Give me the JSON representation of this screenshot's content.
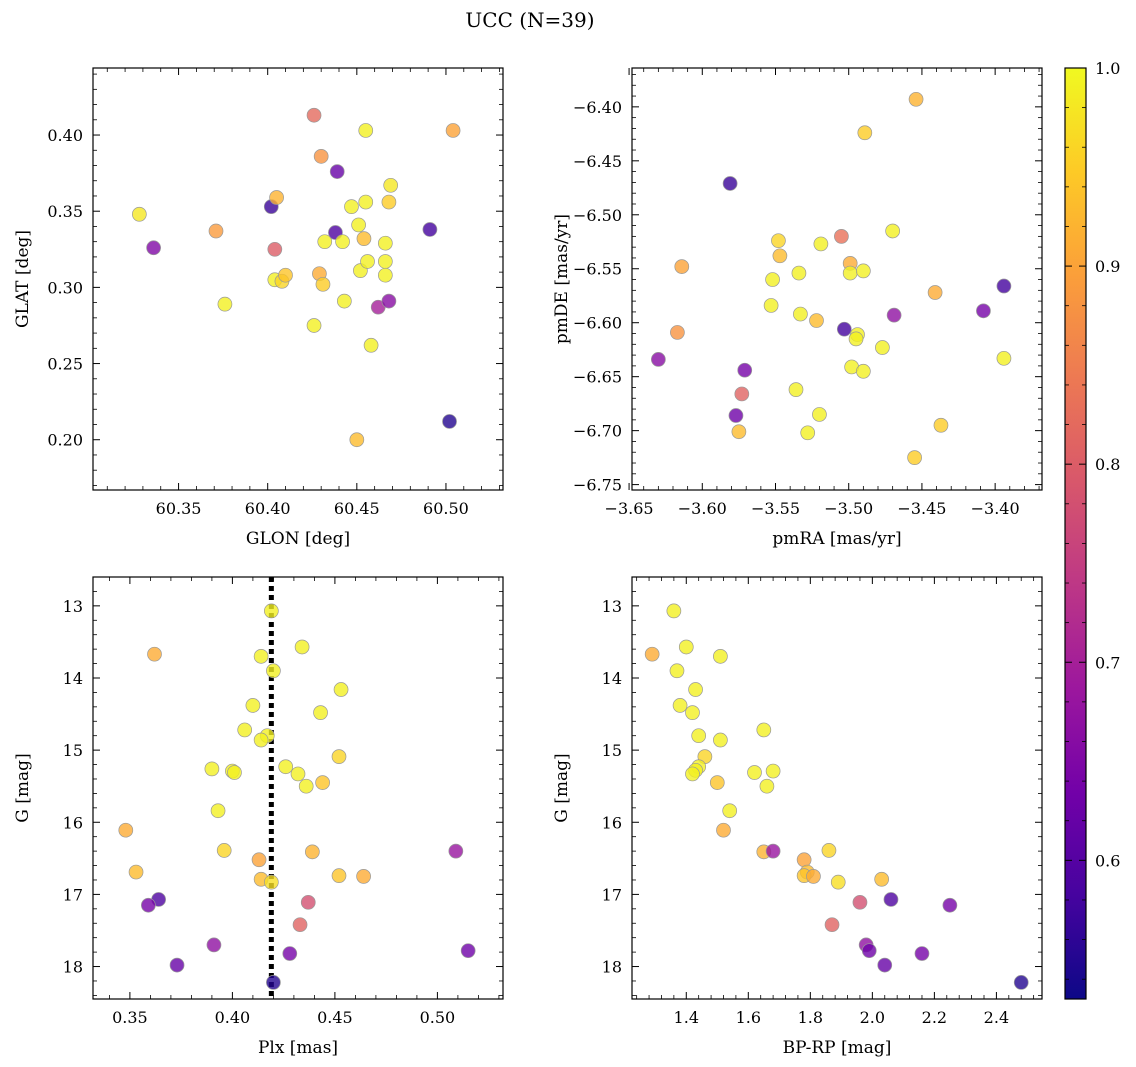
{
  "title": "UCC (N=39)",
  "chart_data": [
    {
      "type": "scatter",
      "xlabel": "GLON [deg]",
      "ylabel": "GLAT [deg]",
      "xlim": [
        60.302,
        60.532
      ],
      "ylim": [
        0.167,
        0.444
      ],
      "xticks": [
        60.35,
        60.4,
        60.45,
        60.5
      ],
      "xticklabels": [
        "60.35",
        "60.40",
        "60.45",
        "60.50"
      ],
      "yticks": [
        0.2,
        0.25,
        0.3,
        0.35,
        0.4
      ],
      "yticklabels": [
        "0.20",
        "0.25",
        "0.30",
        "0.35",
        "0.40"
      ],
      "grid": false,
      "points": [
        {
          "x": 60.328,
          "y": 0.348,
          "c": 0.98
        },
        {
          "x": 60.336,
          "y": 0.326,
          "c": 0.65
        },
        {
          "x": 60.371,
          "y": 0.337,
          "c": 0.89
        },
        {
          "x": 60.376,
          "y": 0.289,
          "c": 0.99
        },
        {
          "x": 60.402,
          "y": 0.353,
          "c": 0.57
        },
        {
          "x": 60.404,
          "y": 0.325,
          "c": 0.8
        },
        {
          "x": 60.404,
          "y": 0.305,
          "c": 0.99
        },
        {
          "x": 60.405,
          "y": 0.359,
          "c": 0.92
        },
        {
          "x": 60.408,
          "y": 0.304,
          "c": 0.96
        },
        {
          "x": 60.41,
          "y": 0.308,
          "c": 0.94
        },
        {
          "x": 60.426,
          "y": 0.413,
          "c": 0.82
        },
        {
          "x": 60.426,
          "y": 0.275,
          "c": 0.99
        },
        {
          "x": 60.429,
          "y": 0.309,
          "c": 0.91
        },
        {
          "x": 60.43,
          "y": 0.386,
          "c": 0.88
        },
        {
          "x": 60.431,
          "y": 0.302,
          "c": 0.95
        },
        {
          "x": 60.432,
          "y": 0.33,
          "c": 0.99
        },
        {
          "x": 60.438,
          "y": 0.336,
          "c": 0.59
        },
        {
          "x": 60.439,
          "y": 0.376,
          "c": 0.62
        },
        {
          "x": 60.442,
          "y": 0.33,
          "c": 0.99
        },
        {
          "x": 60.443,
          "y": 0.291,
          "c": 0.99
        },
        {
          "x": 60.447,
          "y": 0.353,
          "c": 0.99
        },
        {
          "x": 60.45,
          "y": 0.2,
          "c": 0.93
        },
        {
          "x": 60.451,
          "y": 0.341,
          "c": 0.99
        },
        {
          "x": 60.452,
          "y": 0.311,
          "c": 0.99
        },
        {
          "x": 60.454,
          "y": 0.332,
          "c": 0.93
        },
        {
          "x": 60.455,
          "y": 0.403,
          "c": 0.99
        },
        {
          "x": 60.455,
          "y": 0.356,
          "c": 0.99
        },
        {
          "x": 60.456,
          "y": 0.317,
          "c": 0.99
        },
        {
          "x": 60.458,
          "y": 0.262,
          "c": 0.99
        },
        {
          "x": 60.462,
          "y": 0.287,
          "c": 0.7
        },
        {
          "x": 60.466,
          "y": 0.329,
          "c": 0.99
        },
        {
          "x": 60.466,
          "y": 0.317,
          "c": 0.99
        },
        {
          "x": 60.466,
          "y": 0.308,
          "c": 0.99
        },
        {
          "x": 60.468,
          "y": 0.291,
          "c": 0.66
        },
        {
          "x": 60.468,
          "y": 0.356,
          "c": 0.95
        },
        {
          "x": 60.469,
          "y": 0.367,
          "c": 0.98
        },
        {
          "x": 60.491,
          "y": 0.338,
          "c": 0.58
        },
        {
          "x": 60.502,
          "y": 0.212,
          "c": 0.55
        },
        {
          "x": 60.504,
          "y": 0.403,
          "c": 0.9
        }
      ]
    },
    {
      "type": "scatter",
      "xlabel": "pmRA [mas/yr]",
      "ylabel": "pmDE [mas/yr]",
      "xlim": [
        -3.648,
        -3.368
      ],
      "ylim": [
        -6.755,
        -6.364
      ],
      "xticks": [
        -3.65,
        -3.6,
        -3.55,
        -3.5,
        -3.45,
        -3.4
      ],
      "xticklabels": [
        "−3.65",
        "−3.60",
        "−3.55",
        "−3.50",
        "−3.45",
        "−3.40"
      ],
      "yticks": [
        -6.75,
        -6.7,
        -6.65,
        -6.6,
        -6.55,
        -6.5,
        -6.45,
        -6.4
      ],
      "yticklabels": [
        "−6.75",
        "−6.70",
        "−6.65",
        "−6.60",
        "−6.55",
        "−6.50",
        "−6.45",
        "−6.40"
      ],
      "grid": false,
      "points": [
        {
          "x": -3.63,
          "y": -6.634,
          "c": 0.66
        },
        {
          "x": -3.617,
          "y": -6.609,
          "c": 0.88
        },
        {
          "x": -3.614,
          "y": -6.548,
          "c": 0.9
        },
        {
          "x": -3.581,
          "y": -6.471,
          "c": 0.57
        },
        {
          "x": -3.577,
          "y": -6.686,
          "c": 0.63
        },
        {
          "x": -3.575,
          "y": -6.701,
          "c": 0.93
        },
        {
          "x": -3.573,
          "y": -6.666,
          "c": 0.81
        },
        {
          "x": -3.571,
          "y": -6.644,
          "c": 0.64
        },
        {
          "x": -3.553,
          "y": -6.584,
          "c": 0.99
        },
        {
          "x": -3.552,
          "y": -6.56,
          "c": 0.99
        },
        {
          "x": -3.548,
          "y": -6.524,
          "c": 0.96
        },
        {
          "x": -3.547,
          "y": -6.538,
          "c": 0.93
        },
        {
          "x": -3.536,
          "y": -6.662,
          "c": 0.99
        },
        {
          "x": -3.534,
          "y": -6.554,
          "c": 0.99
        },
        {
          "x": -3.533,
          "y": -6.592,
          "c": 0.99
        },
        {
          "x": -3.528,
          "y": -6.702,
          "c": 0.99
        },
        {
          "x": -3.522,
          "y": -6.598,
          "c": 0.93
        },
        {
          "x": -3.52,
          "y": -6.685,
          "c": 0.99
        },
        {
          "x": -3.519,
          "y": -6.527,
          "c": 0.99
        },
        {
          "x": -3.505,
          "y": -6.52,
          "c": 0.83
        },
        {
          "x": -3.503,
          "y": -6.606,
          "c": 0.58
        },
        {
          "x": -3.499,
          "y": -6.545,
          "c": 0.91
        },
        {
          "x": -3.499,
          "y": -6.554,
          "c": 0.99
        },
        {
          "x": -3.498,
          "y": -6.641,
          "c": 0.99
        },
        {
          "x": -3.494,
          "y": -6.611,
          "c": 0.99
        },
        {
          "x": -3.495,
          "y": -6.615,
          "c": 0.99
        },
        {
          "x": -3.49,
          "y": -6.645,
          "c": 0.99
        },
        {
          "x": -3.49,
          "y": -6.552,
          "c": 0.99
        },
        {
          "x": -3.489,
          "y": -6.424,
          "c": 0.95
        },
        {
          "x": -3.477,
          "y": -6.623,
          "c": 0.99
        },
        {
          "x": -3.47,
          "y": -6.515,
          "c": 0.99
        },
        {
          "x": -3.469,
          "y": -6.593,
          "c": 0.67
        },
        {
          "x": -3.455,
          "y": -6.725,
          "c": 0.95
        },
        {
          "x": -3.454,
          "y": -6.393,
          "c": 0.92
        },
        {
          "x": -3.441,
          "y": -6.572,
          "c": 0.91
        },
        {
          "x": -3.437,
          "y": -6.695,
          "c": 0.95
        },
        {
          "x": -3.408,
          "y": -6.589,
          "c": 0.64
        },
        {
          "x": -3.394,
          "y": -6.566,
          "c": 0.58
        },
        {
          "x": -3.394,
          "y": -6.633,
          "c": 0.99
        }
      ]
    },
    {
      "type": "scatter",
      "xlabel": "Plx [mas]",
      "ylabel": "G [mag]",
      "xlim": [
        0.332,
        0.532
      ],
      "ylim": [
        18.45,
        12.6
      ],
      "y_inverted": true,
      "xticks": [
        0.35,
        0.4,
        0.45,
        0.5
      ],
      "xticklabels": [
        "0.35",
        "0.40",
        "0.45",
        "0.50"
      ],
      "yticks": [
        13,
        14,
        15,
        16,
        17,
        18
      ],
      "yticklabels": [
        "13",
        "14",
        "15",
        "16",
        "17",
        "18"
      ],
      "grid": false,
      "vline": {
        "x": 0.419,
        "style": "dotted",
        "color": "#000000"
      },
      "points": [
        {
          "x": 0.419,
          "y": 13.07,
          "c": 0.99
        },
        {
          "x": 0.434,
          "y": 13.57,
          "c": 0.99
        },
        {
          "x": 0.362,
          "y": 13.67,
          "c": 0.91
        },
        {
          "x": 0.414,
          "y": 13.7,
          "c": 0.99
        },
        {
          "x": 0.42,
          "y": 13.9,
          "c": 0.99
        },
        {
          "x": 0.453,
          "y": 14.16,
          "c": 0.99
        },
        {
          "x": 0.41,
          "y": 14.38,
          "c": 0.99
        },
        {
          "x": 0.443,
          "y": 14.48,
          "c": 0.99
        },
        {
          "x": 0.406,
          "y": 14.72,
          "c": 0.99
        },
        {
          "x": 0.417,
          "y": 14.8,
          "c": 0.99
        },
        {
          "x": 0.414,
          "y": 14.86,
          "c": 0.99
        },
        {
          "x": 0.452,
          "y": 15.09,
          "c": 0.96
        },
        {
          "x": 0.426,
          "y": 15.23,
          "c": 0.99
        },
        {
          "x": 0.39,
          "y": 15.26,
          "c": 0.99
        },
        {
          "x": 0.4,
          "y": 15.29,
          "c": 0.99
        },
        {
          "x": 0.401,
          "y": 15.31,
          "c": 0.99
        },
        {
          "x": 0.432,
          "y": 15.33,
          "c": 0.99
        },
        {
          "x": 0.444,
          "y": 15.45,
          "c": 0.94
        },
        {
          "x": 0.436,
          "y": 15.5,
          "c": 0.99
        },
        {
          "x": 0.393,
          "y": 15.84,
          "c": 0.99
        },
        {
          "x": 0.348,
          "y": 16.11,
          "c": 0.91
        },
        {
          "x": 0.396,
          "y": 16.39,
          "c": 0.96
        },
        {
          "x": 0.439,
          "y": 16.41,
          "c": 0.92
        },
        {
          "x": 0.509,
          "y": 16.4,
          "c": 0.68
        },
        {
          "x": 0.413,
          "y": 16.52,
          "c": 0.9
        },
        {
          "x": 0.353,
          "y": 16.69,
          "c": 0.93
        },
        {
          "x": 0.452,
          "y": 16.74,
          "c": 0.94
        },
        {
          "x": 0.464,
          "y": 16.75,
          "c": 0.91
        },
        {
          "x": 0.414,
          "y": 16.79,
          "c": 0.93
        },
        {
          "x": 0.419,
          "y": 16.83,
          "c": 0.97
        },
        {
          "x": 0.364,
          "y": 17.07,
          "c": 0.59
        },
        {
          "x": 0.437,
          "y": 17.11,
          "c": 0.78
        },
        {
          "x": 0.359,
          "y": 17.15,
          "c": 0.64
        },
        {
          "x": 0.433,
          "y": 17.42,
          "c": 0.81
        },
        {
          "x": 0.391,
          "y": 17.7,
          "c": 0.67
        },
        {
          "x": 0.515,
          "y": 17.78,
          "c": 0.63
        },
        {
          "x": 0.428,
          "y": 17.82,
          "c": 0.64
        },
        {
          "x": 0.373,
          "y": 17.98,
          "c": 0.62
        },
        {
          "x": 0.42,
          "y": 18.22,
          "c": 0.55
        }
      ]
    },
    {
      "type": "scatter",
      "xlabel": "BP-RP [mag]",
      "ylabel": "G [mag]",
      "xlim": [
        1.225,
        2.547
      ],
      "ylim": [
        18.45,
        12.6
      ],
      "y_inverted": true,
      "xticks": [
        1.4,
        1.6,
        1.8,
        2.0,
        2.2,
        2.4
      ],
      "xticklabels": [
        "1.4",
        "1.6",
        "1.8",
        "2.0",
        "2.2",
        "2.4"
      ],
      "yticks": [
        13,
        14,
        15,
        16,
        17,
        18
      ],
      "yticklabels": [
        "13",
        "14",
        "15",
        "16",
        "17",
        "18"
      ],
      "grid": false,
      "points": [
        {
          "x": 1.36,
          "y": 13.07,
          "c": 0.99
        },
        {
          "x": 1.4,
          "y": 13.57,
          "c": 0.99
        },
        {
          "x": 1.29,
          "y": 13.67,
          "c": 0.91
        },
        {
          "x": 1.51,
          "y": 13.7,
          "c": 0.99
        },
        {
          "x": 1.37,
          "y": 13.9,
          "c": 0.99
        },
        {
          "x": 1.43,
          "y": 14.16,
          "c": 0.99
        },
        {
          "x": 1.38,
          "y": 14.38,
          "c": 0.99
        },
        {
          "x": 1.42,
          "y": 14.48,
          "c": 0.99
        },
        {
          "x": 1.65,
          "y": 14.72,
          "c": 0.99
        },
        {
          "x": 1.44,
          "y": 14.8,
          "c": 0.99
        },
        {
          "x": 1.51,
          "y": 14.86,
          "c": 0.99
        },
        {
          "x": 1.46,
          "y": 15.09,
          "c": 0.96
        },
        {
          "x": 1.44,
          "y": 15.23,
          "c": 0.99
        },
        {
          "x": 1.43,
          "y": 15.28,
          "c": 0.99
        },
        {
          "x": 1.68,
          "y": 15.29,
          "c": 0.99
        },
        {
          "x": 1.62,
          "y": 15.31,
          "c": 0.99
        },
        {
          "x": 1.42,
          "y": 15.33,
          "c": 0.99
        },
        {
          "x": 1.5,
          "y": 15.45,
          "c": 0.94
        },
        {
          "x": 1.66,
          "y": 15.5,
          "c": 0.99
        },
        {
          "x": 1.54,
          "y": 15.84,
          "c": 0.99
        },
        {
          "x": 1.52,
          "y": 16.11,
          "c": 0.91
        },
        {
          "x": 1.86,
          "y": 16.39,
          "c": 0.96
        },
        {
          "x": 1.65,
          "y": 16.41,
          "c": 0.92
        },
        {
          "x": 1.68,
          "y": 16.4,
          "c": 0.68
        },
        {
          "x": 1.78,
          "y": 16.52,
          "c": 0.9
        },
        {
          "x": 1.79,
          "y": 16.69,
          "c": 0.93
        },
        {
          "x": 1.78,
          "y": 16.74,
          "c": 0.94
        },
        {
          "x": 1.81,
          "y": 16.75,
          "c": 0.91
        },
        {
          "x": 2.03,
          "y": 16.79,
          "c": 0.93
        },
        {
          "x": 1.89,
          "y": 16.83,
          "c": 0.97
        },
        {
          "x": 2.06,
          "y": 17.07,
          "c": 0.59
        },
        {
          "x": 1.96,
          "y": 17.11,
          "c": 0.78
        },
        {
          "x": 2.25,
          "y": 17.15,
          "c": 0.64
        },
        {
          "x": 1.87,
          "y": 17.42,
          "c": 0.81
        },
        {
          "x": 1.98,
          "y": 17.7,
          "c": 0.67
        },
        {
          "x": 1.99,
          "y": 17.78,
          "c": 0.63
        },
        {
          "x": 2.16,
          "y": 17.82,
          "c": 0.64
        },
        {
          "x": 2.04,
          "y": 17.98,
          "c": 0.62
        },
        {
          "x": 2.48,
          "y": 18.22,
          "c": 0.55
        }
      ]
    }
  ],
  "colorbar": {
    "colormap": "plasma",
    "range": [
      0.53,
      1.0
    ],
    "ticks": [
      0.6,
      0.7,
      0.8,
      0.9,
      1.0
    ],
    "ticklabels": [
      "0.6",
      "0.7",
      "0.8",
      "0.9",
      "1.0"
    ],
    "stops": [
      "#0d0887",
      "#46039f",
      "#7201a8",
      "#9c179e",
      "#bd3786",
      "#d8576b",
      "#ed7953",
      "#fb9f3a",
      "#fdca26",
      "#f0f921"
    ]
  },
  "marker_alpha": 0.8,
  "marker_edge_color": "#999999"
}
